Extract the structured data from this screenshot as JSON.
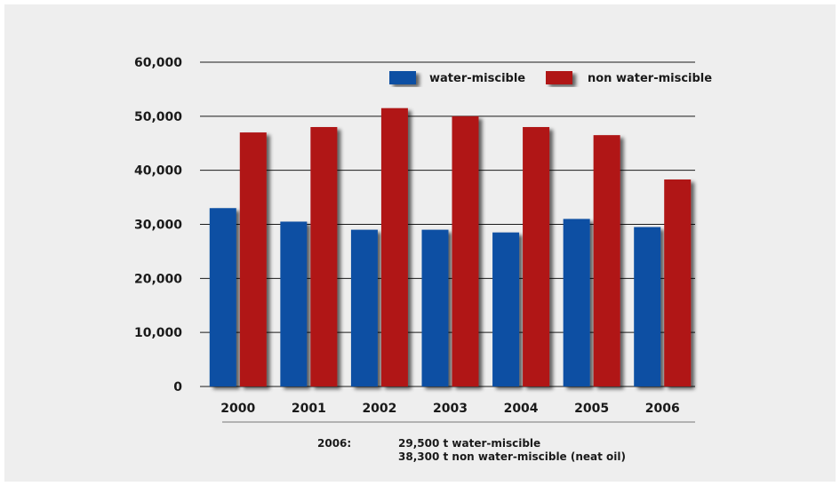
{
  "chart_data": {
    "type": "bar",
    "categories": [
      "2000",
      "2001",
      "2002",
      "2003",
      "2004",
      "2005",
      "2006"
    ],
    "series": [
      {
        "name": "water-miscible",
        "values": [
          33000,
          30500,
          29000,
          29000,
          28500,
          31000,
          29500
        ]
      },
      {
        "name": "non water-miscible",
        "values": [
          47000,
          48000,
          51500,
          50000,
          48000,
          46500,
          38300
        ]
      }
    ],
    "y_ticks": [
      "0",
      "10,000",
      "20,000",
      "30,000",
      "40,000",
      "50,000",
      "60,000"
    ],
    "ylim": [
      0,
      60000
    ],
    "grid": true,
    "legend_position": "top-right",
    "colors": {
      "water-miscible": "#0a4fa3",
      "non water-miscible": "#b01416",
      "shadow": "#5a5a5a"
    }
  },
  "footnote": {
    "year_label": "2006:",
    "line1": "29,500 t water-miscible",
    "line2": "38,300 t non water-miscible (neat oil)"
  }
}
